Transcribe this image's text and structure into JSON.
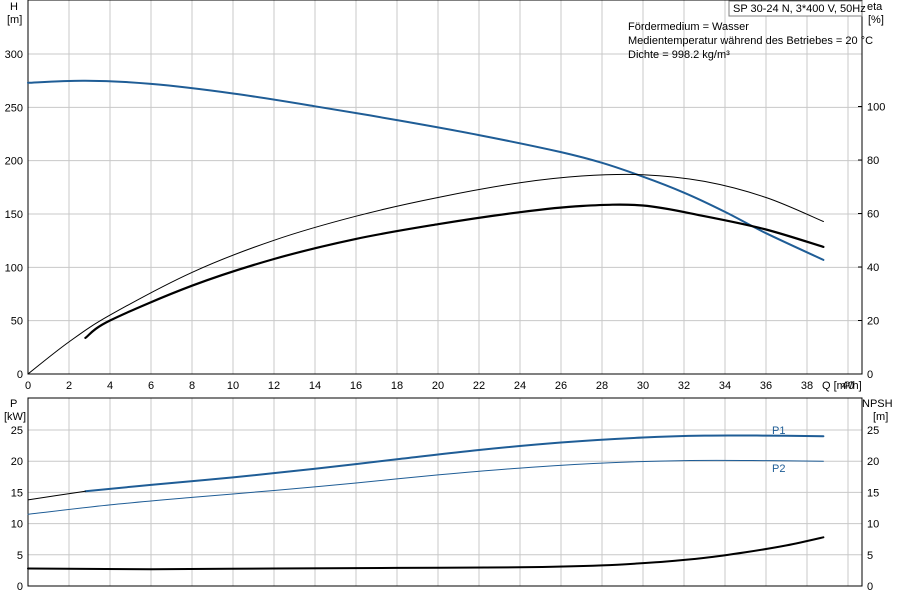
{
  "info": {
    "title": "SP 30-24 N, 3*400 V, 50Hz",
    "lines": [
      "Fördermedium = Wasser",
      "Medientemperatur während des Betriebes = 20 °C",
      "Dichte = 998.2 kg/m³"
    ]
  },
  "colors": {
    "blue": "#1f5d96",
    "black": "#000000",
    "grid": "#c8c8c8"
  },
  "chart_data": [
    {
      "type": "line",
      "xlabel": "Q [m³/h]",
      "ylabel_left": [
        "H",
        "[m]"
      ],
      "ylabel_right": [
        "eta",
        "[%]"
      ],
      "xlim": [
        0,
        40
      ],
      "ylim_left": [
        0,
        300
      ],
      "ylim_right": [
        0,
        120
      ],
      "x_ticks": [
        0,
        2,
        4,
        6,
        8,
        10,
        12,
        14,
        16,
        18,
        20,
        22,
        24,
        26,
        28,
        30,
        32,
        34,
        36,
        38,
        40
      ],
      "y_ticks_left": [
        0,
        50,
        100,
        150,
        200,
        250,
        300
      ],
      "y_ticks_right": [
        0,
        20,
        40,
        60,
        80,
        100
      ],
      "grid": true,
      "series": [
        {
          "axis": "left",
          "color": "blue",
          "width": 2,
          "points": [
            [
              0,
              273
            ],
            [
              2.8,
              275
            ],
            [
              6,
              272
            ],
            [
              10,
              263
            ],
            [
              14,
              251
            ],
            [
              18,
              238
            ],
            [
              22,
              224
            ],
            [
              26,
              208
            ],
            [
              28,
              198
            ],
            [
              30,
              185
            ],
            [
              32,
              170
            ],
            [
              34,
              152
            ],
            [
              36,
              132
            ],
            [
              38.8,
              107
            ]
          ]
        },
        {
          "axis": "right",
          "color": "black",
          "width": 1,
          "points": [
            [
              0,
              0
            ],
            [
              2,
              12
            ],
            [
              4,
              22
            ],
            [
              8,
              38
            ],
            [
              12,
              50
            ],
            [
              16,
              59
            ],
            [
              20,
              66
            ],
            [
              24,
              71.5
            ],
            [
              27,
              74
            ],
            [
              30,
              74.5
            ],
            [
              33,
              72
            ],
            [
              36,
              66
            ],
            [
              38.8,
              57
            ]
          ]
        },
        {
          "axis": "right",
          "color": "black",
          "width": 2.2,
          "points": [
            [
              2.8,
              13.5
            ],
            [
              4,
              20
            ],
            [
              8,
              33
            ],
            [
              12,
              43
            ],
            [
              16,
              50.5
            ],
            [
              20,
              56
            ],
            [
              24,
              60.5
            ],
            [
              27,
              62.8
            ],
            [
              30,
              63
            ],
            [
              33,
              59
            ],
            [
              36,
              54
            ],
            [
              38.8,
              47.5
            ]
          ]
        }
      ]
    },
    {
      "type": "line",
      "xlim": [
        0,
        40
      ],
      "ylabel_left": [
        "P",
        "[kW]"
      ],
      "ylabel_right": [
        "NPSH",
        "[m]"
      ],
      "ylim_left": [
        0,
        25
      ],
      "ylim_right": [
        0,
        25
      ],
      "y_ticks_left": [
        0,
        5,
        10,
        15,
        20,
        25
      ],
      "y_ticks_right": [
        0,
        5,
        10,
        15,
        20,
        25
      ],
      "grid": true,
      "series": [
        {
          "name": "P1",
          "axis": "left",
          "color": "blue",
          "width": 2,
          "points": [
            [
              2.8,
              15.2
            ],
            [
              6,
              16.2
            ],
            [
              10,
              17.4
            ],
            [
              14,
              18.8
            ],
            [
              18,
              20.3
            ],
            [
              22,
              21.8
            ],
            [
              26,
              23.0
            ],
            [
              30,
              23.8
            ],
            [
              33,
              24.1
            ],
            [
              36,
              24.1
            ],
            [
              38.8,
              24.0
            ]
          ]
        },
        {
          "name": "P2",
          "axis": "left",
          "color": "blue",
          "width": 1,
          "points": [
            [
              0,
              11.5
            ],
            [
              4,
              13.0
            ],
            [
              8,
              14.2
            ],
            [
              12,
              15.3
            ],
            [
              16,
              16.5
            ],
            [
              20,
              17.8
            ],
            [
              24,
              18.9
            ],
            [
              28,
              19.7
            ],
            [
              32,
              20.1
            ],
            [
              36,
              20.1
            ],
            [
              38.8,
              20.0
            ]
          ]
        },
        {
          "axis": "right",
          "color": "black",
          "width": 1,
          "points": [
            [
              0,
              13.8
            ],
            [
              2.8,
              15.2
            ]
          ]
        },
        {
          "axis": "right",
          "color": "black",
          "width": 2,
          "points": [
            [
              0,
              2.8
            ],
            [
              6,
              2.7
            ],
            [
              12,
              2.8
            ],
            [
              18,
              2.9
            ],
            [
              24,
              3.0
            ],
            [
              28,
              3.3
            ],
            [
              31,
              3.9
            ],
            [
              33,
              4.5
            ],
            [
              35,
              5.4
            ],
            [
              37,
              6.5
            ],
            [
              38.8,
              7.8
            ]
          ]
        }
      ]
    }
  ]
}
